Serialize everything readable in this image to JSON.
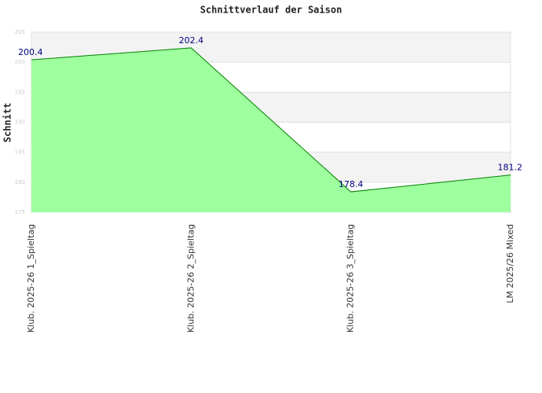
{
  "chart_data": {
    "type": "area",
    "title": "Schnittverlauf der Saison",
    "y_label": "Schnitt",
    "categories": [
      "Klub. 2025-26 1_Spieltag",
      "Klub. 2025-26 2_Spieltag",
      "Klub. 2025-26 3_Spieltag",
      "LM 2025/26 Mixed"
    ],
    "values": [
      200.4,
      202.4,
      178.4,
      181.2
    ],
    "color": "#008000",
    "fill": "#99ff99",
    "ylim": [
      175,
      205
    ],
    "yticks": [
      175,
      180,
      185,
      190,
      195,
      200,
      205
    ],
    "grid": true
  }
}
